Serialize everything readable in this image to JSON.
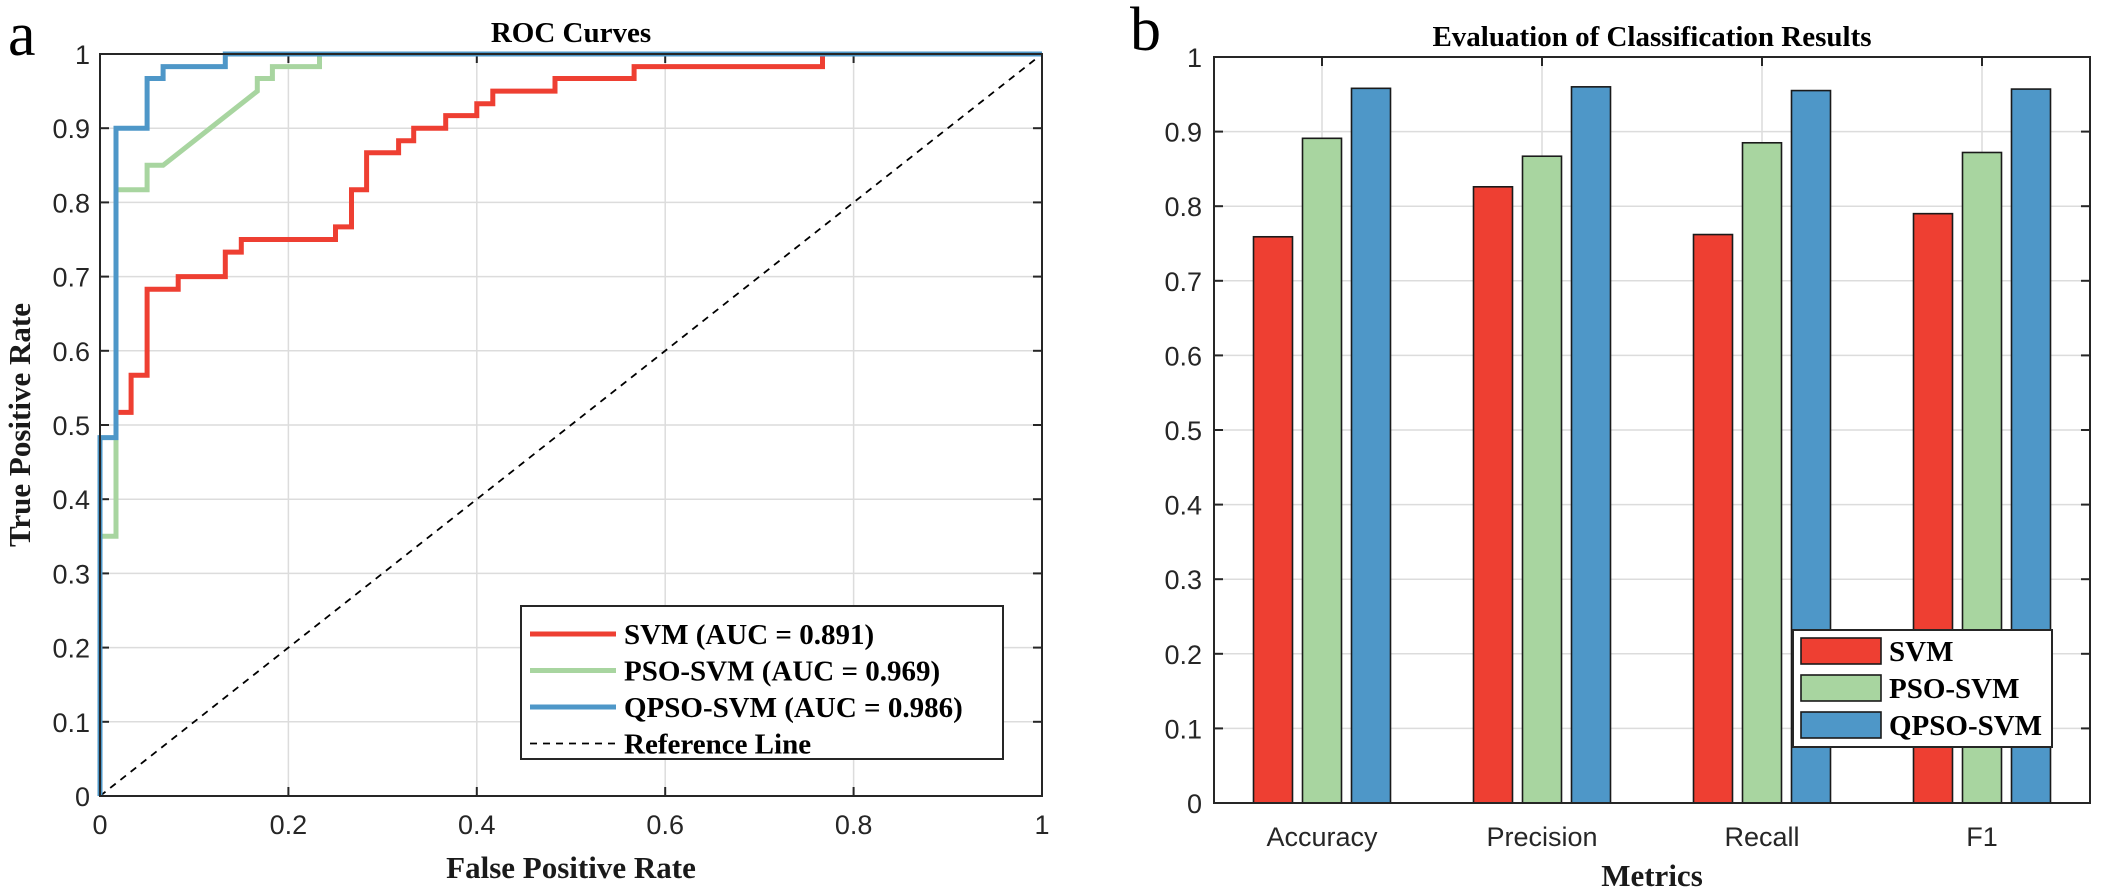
{
  "chart_data": [
    {
      "panel": "a",
      "type": "line",
      "title": "ROC Curves",
      "xlabel": "False Positive Rate",
      "ylabel": "True Positive Rate",
      "xlim": [
        0,
        1
      ],
      "ylim": [
        0,
        1
      ],
      "xticks": [
        "0",
        "0.2",
        "0.4",
        "0.6",
        "0.8",
        "1"
      ],
      "yticks": [
        "0",
        "0.1",
        "0.2",
        "0.3",
        "0.4",
        "0.5",
        "0.6",
        "0.7",
        "0.8",
        "0.9",
        "1"
      ],
      "grid": true,
      "legend_position": "bottom-right",
      "series": [
        {
          "name": "SVM (AUC = 0.891)",
          "color": "#EE3F32",
          "style": "solid",
          "points": [
            [
              0.017,
              0.517
            ],
            [
              0.033,
              0.517
            ],
            [
              0.033,
              0.567
            ],
            [
              0.05,
              0.567
            ],
            [
              0.05,
              0.683
            ],
            [
              0.083,
              0.683
            ],
            [
              0.083,
              0.7
            ],
            [
              0.133,
              0.7
            ],
            [
              0.133,
              0.733
            ],
            [
              0.15,
              0.733
            ],
            [
              0.15,
              0.75
            ],
            [
              0.25,
              0.75
            ],
            [
              0.25,
              0.767
            ],
            [
              0.267,
              0.767
            ],
            [
              0.267,
              0.817
            ],
            [
              0.283,
              0.817
            ],
            [
              0.283,
              0.867
            ],
            [
              0.317,
              0.867
            ],
            [
              0.317,
              0.883
            ],
            [
              0.333,
              0.883
            ],
            [
              0.333,
              0.9
            ],
            [
              0.367,
              0.9
            ],
            [
              0.367,
              0.917
            ],
            [
              0.4,
              0.917
            ],
            [
              0.4,
              0.933
            ],
            [
              0.417,
              0.933
            ],
            [
              0.417,
              0.95
            ],
            [
              0.483,
              0.95
            ],
            [
              0.483,
              0.967
            ],
            [
              0.567,
              0.967
            ],
            [
              0.567,
              0.983
            ],
            [
              0.767,
              0.983
            ],
            [
              0.767,
              1.0
            ]
          ]
        },
        {
          "name": "PSO-SVM (AUC = 0.969)",
          "color": "#A8D5A0",
          "style": "solid",
          "points": [
            [
              0,
              0.35
            ],
            [
              0.017,
              0.35
            ],
            [
              0.017,
              0.817
            ],
            [
              0.05,
              0.817
            ],
            [
              0.05,
              0.85
            ],
            [
              0.067,
              0.85
            ],
            [
              0.167,
              0.95
            ],
            [
              0.167,
              0.967
            ],
            [
              0.183,
              0.967
            ],
            [
              0.183,
              0.983
            ],
            [
              0.233,
              0.983
            ],
            [
              0.233,
              1.0
            ]
          ]
        },
        {
          "name": "QPSO-SVM (AUC = 0.986)",
          "color": "#4E97C8",
          "style": "solid",
          "points": [
            [
              0,
              0
            ],
            [
              0,
              0.483
            ],
            [
              0.017,
              0.483
            ],
            [
              0.017,
              0.9
            ],
            [
              0.05,
              0.9
            ],
            [
              0.05,
              0.967
            ],
            [
              0.067,
              0.967
            ],
            [
              0.067,
              0.983
            ],
            [
              0.133,
              0.983
            ],
            [
              0.133,
              1.0
            ],
            [
              1.0,
              1.0
            ]
          ]
        },
        {
          "name": "Reference Line",
          "color": "#000000",
          "style": "dashed",
          "points": [
            [
              0,
              0
            ],
            [
              1,
              1
            ]
          ]
        }
      ]
    },
    {
      "panel": "b",
      "type": "bar",
      "title": "Evaluation of Classification Results",
      "xlabel": "Metrics",
      "ylabel": "",
      "ylim": [
        0,
        1
      ],
      "yticks": [
        "0",
        "0.1",
        "0.2",
        "0.3",
        "0.4",
        "0.5",
        "0.6",
        "0.7",
        "0.8",
        "0.9",
        "1"
      ],
      "grid": true,
      "legend_position": "bottom-right",
      "categories": [
        "Accuracy",
        "Precision",
        "Recall",
        "F1"
      ],
      "series": [
        {
          "name": "SVM",
          "color": "#EE3F32",
          "values": [
            0.759,
            0.826,
            0.762,
            0.79
          ]
        },
        {
          "name": "PSO-SVM",
          "color": "#A8D5A0",
          "values": [
            0.891,
            0.867,
            0.885,
            0.872
          ]
        },
        {
          "name": "QPSO-SVM",
          "color": "#4E97C8",
          "values": [
            0.958,
            0.96,
            0.955,
            0.957
          ]
        }
      ]
    }
  ]
}
